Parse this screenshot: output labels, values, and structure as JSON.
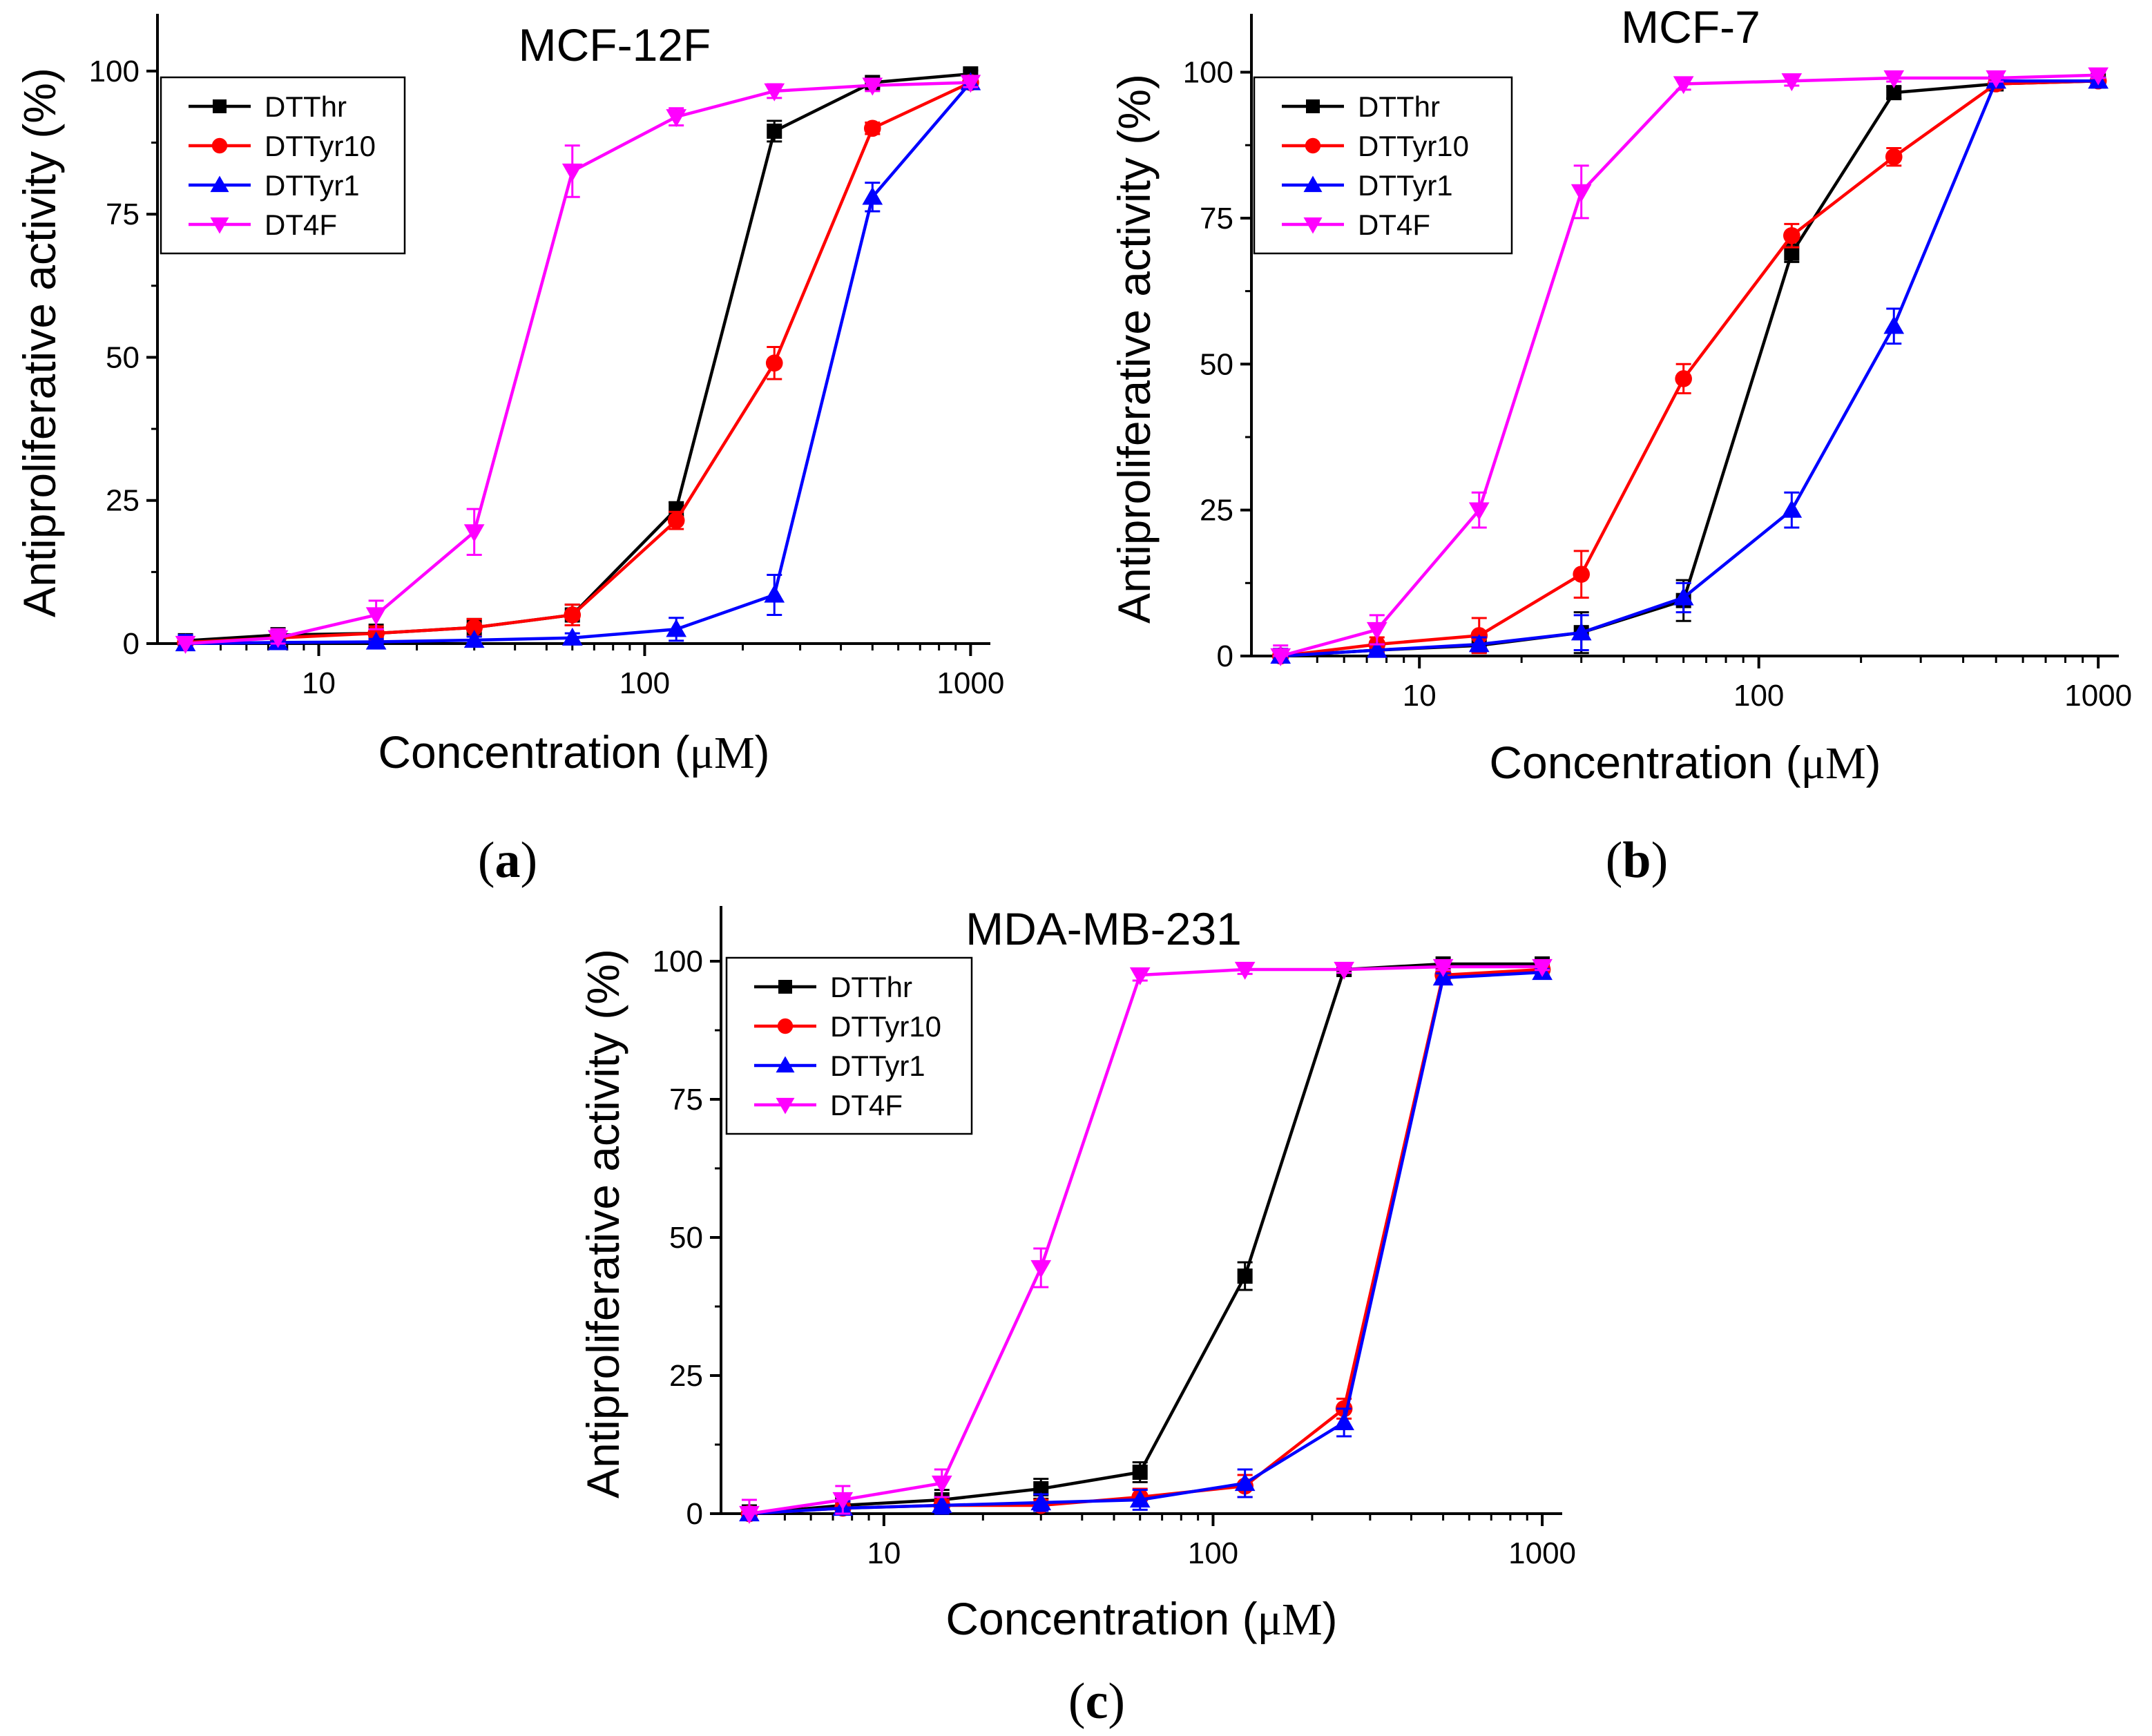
{
  "colors": {
    "DTThr": "#000000",
    "DTTyr10": "#ff0000",
    "DTTyr1": "#0000ff",
    "DT4F": "#ff00ff"
  },
  "markers": {
    "DTThr": "square",
    "DTTyr10": "circle",
    "DTTyr1": "triangle-up",
    "DT4F": "triangle-down"
  },
  "chart_data": [
    {
      "panel": "a",
      "panel_label_open": "(",
      "panel_label_letter": "a",
      "panel_label_close": ")",
      "type": "line",
      "title": "MCF-12F",
      "xlabel_main": "Concentration (",
      "xlabel_unit": "μM",
      "xlabel_close": ")",
      "ylabel": "Antiproliferative activity (%)",
      "xscale": "log",
      "xlim": [
        3.2,
        1150
      ],
      "ylim": [
        0,
        110
      ],
      "xticks": [
        10,
        100,
        1000
      ],
      "xtick_labels": [
        "10",
        "100",
        "1000"
      ],
      "yticks": [
        0,
        25,
        50,
        75,
        100
      ],
      "ytick_labels": [
        "0",
        "25",
        "50",
        "75",
        "100"
      ],
      "legend_position": "top-left",
      "x": [
        3.9,
        7.5,
        15,
        30,
        60,
        125,
        250,
        500,
        1000
      ],
      "series": [
        {
          "name": "DTThr",
          "values": [
            0.5,
            1.5,
            1.8,
            2.8,
            5.0,
            23.5,
            89.5,
            98.0,
            99.5
          ],
          "errors": [
            1.0,
            1.2,
            1.5,
            1.5,
            1.8,
            1.2,
            1.8,
            0.8,
            0.6
          ]
        },
        {
          "name": "DTTyr10",
          "values": [
            0.2,
            1.0,
            1.8,
            2.8,
            5.0,
            21.5,
            49.0,
            90.0,
            98.0
          ],
          "errors": [
            0.8,
            1.0,
            1.2,
            1.5,
            1.8,
            1.5,
            2.8,
            1.0,
            0.8
          ]
        },
        {
          "name": "DTTyr1",
          "values": [
            0.0,
            0.2,
            0.3,
            0.6,
            1.0,
            2.5,
            8.5,
            78.0,
            98.0
          ],
          "errors": [
            1.5,
            0.5,
            0.5,
            0.6,
            0.8,
            2.0,
            3.5,
            2.5,
            0.8
          ]
        },
        {
          "name": "DT4F",
          "values": [
            0.0,
            1.0,
            5.0,
            19.5,
            82.5,
            92.0,
            96.5,
            97.5,
            98.0
          ],
          "errors": [
            0.8,
            1.5,
            2.5,
            4.0,
            4.5,
            1.5,
            1.2,
            1.0,
            0.8
          ]
        }
      ]
    },
    {
      "panel": "b",
      "panel_label_open": "(",
      "panel_label_letter": "b",
      "panel_label_close": ")",
      "type": "line",
      "title": "MCF-7",
      "xlabel_main": "Concentration (",
      "xlabel_unit": "μM",
      "xlabel_close": ")",
      "ylabel": "Antiproliferative activity (%)",
      "xscale": "log",
      "xlim": [
        3.2,
        1150
      ],
      "ylim": [
        0,
        110
      ],
      "xticks": [
        10,
        100,
        1000
      ],
      "xtick_labels": [
        "10",
        "100",
        "1000"
      ],
      "yticks": [
        0,
        25,
        50,
        75,
        100
      ],
      "ytick_labels": [
        "0",
        "25",
        "50",
        "75",
        "100"
      ],
      "legend_position": "top-left",
      "x": [
        3.9,
        7.5,
        15,
        30,
        60,
        125,
        250,
        500,
        1000
      ],
      "series": [
        {
          "name": "DTThr",
          "values": [
            0.0,
            1.0,
            1.8,
            4.0,
            9.5,
            69.0,
            96.5,
            98.0,
            98.5
          ],
          "errors": [
            1.2,
            1.0,
            1.2,
            3.5,
            3.5,
            1.5,
            1.0,
            0.8,
            0.6
          ]
        },
        {
          "name": "DTTyr10",
          "values": [
            0.0,
            2.0,
            3.5,
            14.0,
            47.5,
            72.0,
            85.5,
            98.0,
            98.5
          ],
          "errors": [
            1.0,
            1.2,
            3.0,
            4.0,
            2.5,
            2.0,
            1.5,
            0.8,
            0.6
          ]
        },
        {
          "name": "DTTyr1",
          "values": [
            0.0,
            1.0,
            2.0,
            4.0,
            10.0,
            25.0,
            56.5,
            98.5,
            98.5
          ],
          "errors": [
            1.2,
            1.0,
            1.2,
            3.0,
            2.5,
            3.0,
            3.0,
            0.8,
            0.6
          ]
        },
        {
          "name": "DT4F",
          "values": [
            0.0,
            4.5,
            25.0,
            79.5,
            98.0,
            98.5,
            99.0,
            99.0,
            99.5
          ],
          "errors": [
            1.8,
            2.5,
            3.0,
            4.5,
            1.0,
            0.8,
            0.6,
            0.6,
            0.5
          ]
        }
      ]
    },
    {
      "panel": "c",
      "panel_label_open": "(",
      "panel_label_letter": "c",
      "panel_label_close": ")",
      "type": "line",
      "title": "MDA-MB-231",
      "xlabel_main": "Concentration (",
      "xlabel_unit": "μM",
      "xlabel_close": ")",
      "ylabel": "Antiproliferative activity (%)",
      "xscale": "log",
      "xlim": [
        3.2,
        1150
      ],
      "ylim": [
        0,
        110
      ],
      "xticks": [
        10,
        100,
        1000
      ],
      "xtick_labels": [
        "10",
        "100",
        "1000"
      ],
      "yticks": [
        0,
        25,
        50,
        75,
        100
      ],
      "ytick_labels": [
        "0",
        "25",
        "50",
        "75",
        "100"
      ],
      "legend_position": "top-left",
      "x": [
        3.9,
        7.5,
        15,
        30,
        60,
        125,
        250,
        500,
        1000
      ],
      "series": [
        {
          "name": "DTThr",
          "values": [
            0.0,
            1.5,
            2.5,
            4.5,
            7.5,
            43.0,
            98.5,
            99.5,
            99.5
          ],
          "errors": [
            1.5,
            1.5,
            1.8,
            1.8,
            1.8,
            2.5,
            1.0,
            0.6,
            0.6
          ]
        },
        {
          "name": "DTTyr10",
          "values": [
            0.0,
            1.0,
            1.5,
            1.5,
            3.0,
            5.0,
            19.0,
            97.5,
            98.5
          ],
          "errors": [
            1.0,
            1.0,
            1.0,
            1.0,
            1.5,
            2.0,
            1.8,
            0.8,
            0.6
          ]
        },
        {
          "name": "DTTyr1",
          "values": [
            0.0,
            1.0,
            1.5,
            2.0,
            2.5,
            5.5,
            16.5,
            97.0,
            98.0
          ],
          "errors": [
            1.0,
            1.2,
            1.5,
            1.5,
            1.8,
            2.5,
            2.5,
            0.8,
            0.6
          ]
        },
        {
          "name": "DT4F",
          "values": [
            0.0,
            2.5,
            5.5,
            44.5,
            97.5,
            98.5,
            98.5,
            99.0,
            99.0
          ],
          "errors": [
            2.5,
            2.5,
            2.5,
            3.5,
            1.0,
            0.8,
            0.6,
            0.6,
            0.6
          ]
        }
      ]
    }
  ]
}
